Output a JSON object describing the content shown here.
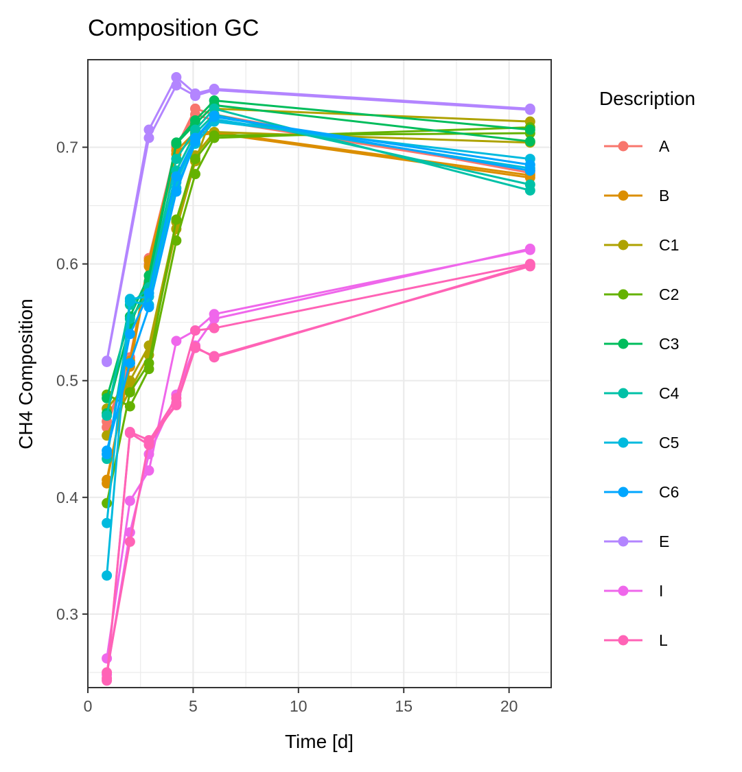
{
  "chart_data": {
    "type": "line",
    "title": "Composition GC",
    "xlabel": "Time [d]",
    "ylabel": "CH4 Composition",
    "xlim": [
      0,
      22
    ],
    "ylim": [
      0.237,
      0.775
    ],
    "x_ticks": [
      0,
      5,
      10,
      15,
      20
    ],
    "x_tick_labels": [
      "0",
      "5",
      "10",
      "15",
      "20"
    ],
    "y_ticks": [
      0.3,
      0.4,
      0.5,
      0.6,
      0.7
    ],
    "y_tick_labels": [
      "0.3",
      "0.4",
      "0.5",
      "0.6",
      "0.7"
    ],
    "grid": true,
    "legend_title": "Description",
    "legend_position": "right",
    "series": [
      {
        "name": "A",
        "color": "#F8766D",
        "runs": [
          {
            "x": [
              0.9,
              2.0,
              2.9,
              4.2,
              5.1,
              6.0,
              21.0
            ],
            "y": [
              0.465,
              0.515,
              0.605,
              0.7,
              0.733,
              0.728,
              0.678
            ]
          },
          {
            "x": [
              0.9,
              2.0,
              2.9,
              4.2,
              5.1,
              6.0,
              21.0
            ],
            "y": [
              0.46,
              0.52,
              0.6,
              0.702,
              0.728,
              0.723,
              0.68
            ]
          }
        ]
      },
      {
        "name": "B",
        "color": "#DB8E00",
        "runs": [
          {
            "x": [
              0.9,
              2.0,
              2.9,
              4.2,
              5.1,
              6.0,
              21.0
            ],
            "y": [
              0.412,
              0.517,
              0.603,
              0.697,
              0.713,
              0.713,
              0.676
            ]
          },
          {
            "x": [
              0.9,
              2.0,
              2.9,
              4.2,
              5.1,
              6.0,
              21.0
            ],
            "y": [
              0.415,
              0.512,
              0.598,
              0.694,
              0.71,
              0.712,
              0.674
            ]
          }
        ]
      },
      {
        "name": "C1",
        "color": "#AEA200",
        "runs": [
          {
            "x": [
              0.9,
              2.0,
              2.9,
              4.2,
              5.1,
              6.0,
              21.0
            ],
            "y": [
              0.453,
              0.492,
              0.522,
              0.63,
              0.688,
              0.733,
              0.722
            ]
          },
          {
            "x": [
              0.9,
              2.0,
              2.9,
              4.2,
              5.1,
              6.0,
              21.0
            ],
            "y": [
              0.476,
              0.5,
              0.53,
              0.636,
              0.693,
              0.713,
              0.704
            ]
          }
        ]
      },
      {
        "name": "C2",
        "color": "#64B200",
        "runs": [
          {
            "x": [
              0.9,
              2.0,
              2.9,
              4.2,
              5.1,
              6.0,
              21.0
            ],
            "y": [
              0.488,
              0.478,
              0.51,
              0.62,
              0.677,
              0.708,
              0.717
            ]
          },
          {
            "x": [
              0.9,
              2.0,
              2.9,
              4.2,
              5.1,
              6.0,
              21.0
            ],
            "y": [
              0.395,
              0.49,
              0.515,
              0.638,
              0.69,
              0.71,
              0.712
            ]
          }
        ]
      },
      {
        "name": "C3",
        "color": "#00BD5C",
        "runs": [
          {
            "x": [
              0.9,
              2.0,
              2.9,
              4.2,
              5.1,
              6.0,
              21.0
            ],
            "y": [
              0.485,
              0.555,
              0.59,
              0.704,
              0.723,
              0.74,
              0.715
            ]
          },
          {
            "x": [
              0.9,
              2.0,
              2.9,
              4.2,
              5.1,
              6.0,
              21.0
            ],
            "y": [
              0.472,
              0.548,
              0.585,
              0.703,
              0.72,
              0.736,
              0.705
            ]
          }
        ]
      },
      {
        "name": "C4",
        "color": "#00C1A7",
        "runs": [
          {
            "x": [
              0.9,
              2.0,
              2.9,
              4.2,
              5.1,
              6.0,
              21.0
            ],
            "y": [
              0.47,
              0.565,
              0.58,
              0.69,
              0.715,
              0.733,
              0.663
            ]
          },
          {
            "x": [
              0.9,
              2.0,
              2.9,
              4.2,
              5.1,
              6.0,
              21.0
            ],
            "y": [
              0.433,
              0.553,
              0.575,
              0.68,
              0.712,
              0.728,
              0.668
            ]
          }
        ]
      },
      {
        "name": "C5",
        "color": "#00BADE",
        "runs": [
          {
            "x": [
              0.9,
              2.0,
              2.9,
              4.2,
              5.1,
              6.0,
              21.0
            ],
            "y": [
              0.378,
              0.57,
              0.572,
              0.67,
              0.707,
              0.724,
              0.682
            ]
          },
          {
            "x": [
              0.9,
              2.0,
              2.9,
              4.2,
              5.1,
              6.0,
              21.0
            ],
            "y": [
              0.333,
              0.568,
              0.565,
              0.665,
              0.703,
              0.722,
              0.69
            ]
          }
        ]
      },
      {
        "name": "C6",
        "color": "#00A6FF",
        "runs": [
          {
            "x": [
              0.9,
              2.0,
              2.9,
              4.2,
              5.1,
              6.0,
              21.0
            ],
            "y": [
              0.44,
              0.515,
              0.563,
              0.662,
              0.705,
              0.727,
              0.68
            ]
          },
          {
            "x": [
              0.9,
              2.0,
              2.9,
              4.2,
              5.1,
              6.0,
              21.0
            ],
            "y": [
              0.437,
              0.54,
              0.575,
              0.675,
              0.708,
              0.726,
              0.685
            ]
          }
        ]
      },
      {
        "name": "E",
        "color": "#B385FF",
        "runs": [
          {
            "x": [
              0.9,
              2.9,
              4.2,
              5.1,
              6.0,
              21.0
            ],
            "y": [
              0.517,
              0.715,
              0.76,
              0.746,
              0.75,
              0.733
            ]
          },
          {
            "x": [
              0.9,
              2.9,
              4.2,
              5.1,
              6.0,
              21.0
            ],
            "y": [
              0.516,
              0.708,
              0.753,
              0.744,
              0.749,
              0.732
            ]
          }
        ]
      },
      {
        "name": "I",
        "color": "#EF67EB",
        "runs": [
          {
            "x": [
              0.9,
              2.0,
              2.9,
              4.2,
              5.1,
              6.0,
              21.0
            ],
            "y": [
              0.262,
              0.397,
              0.423,
              0.534,
              0.543,
              0.557,
              0.612
            ]
          },
          {
            "x": [
              0.9,
              2.0,
              2.9,
              4.2,
              5.1,
              6.0,
              21.0
            ],
            "y": [
              0.248,
              0.37,
              0.437,
              0.488,
              0.53,
              0.553,
              0.613
            ]
          }
        ]
      },
      {
        "name": "L",
        "color": "#FF63B6",
        "runs": [
          {
            "x": [
              0.9,
              2.0,
              2.9,
              4.2,
              5.1,
              6.0,
              21.0
            ],
            "y": [
              0.243,
              0.456,
              0.449,
              0.479,
              0.528,
              0.521,
              0.598
            ]
          },
          {
            "x": [
              0.9,
              2.0,
              2.9,
              4.2,
              5.1,
              6.0,
              21.0
            ],
            "y": [
              0.25,
              0.362,
              0.448,
              0.485,
              0.543,
              0.545,
              0.6
            ]
          },
          {
            "x": [
              0.9,
              2.0,
              2.9,
              4.2,
              5.1,
              6.0,
              21.0
            ],
            "y": [
              0.245,
              0.455,
              0.445,
              0.481,
              0.529,
              0.52,
              0.599
            ]
          }
        ]
      }
    ]
  }
}
